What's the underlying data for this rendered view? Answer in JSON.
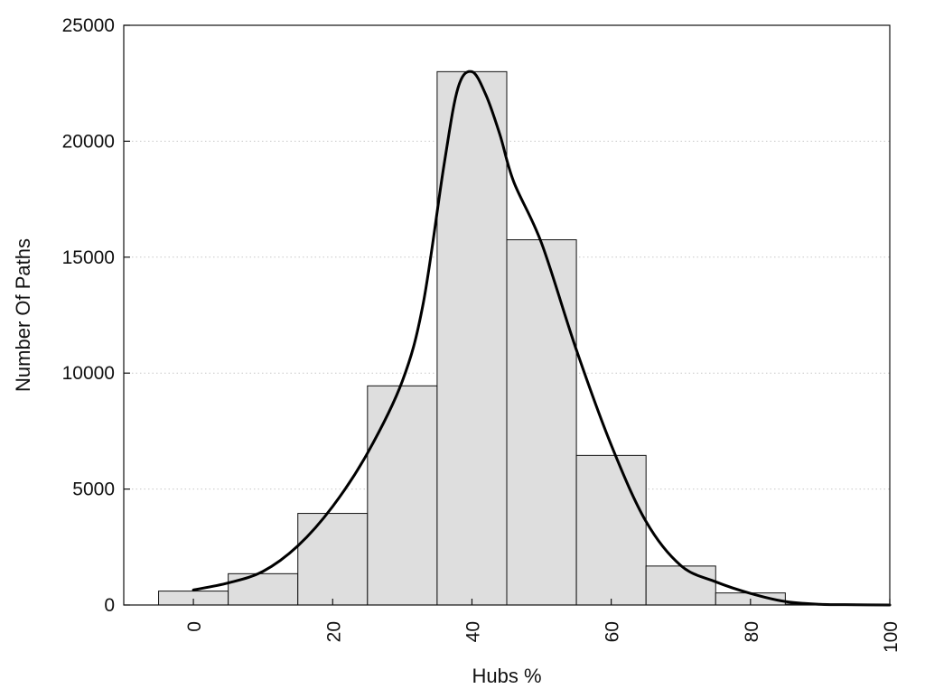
{
  "chart_data": {
    "type": "bar",
    "subtype": "histogram-with-density-curve",
    "title": "",
    "xlabel": "Hubs %",
    "ylabel": "Number Of Paths",
    "xlim": [
      -10,
      100
    ],
    "ylim": [
      0,
      25000
    ],
    "x_ticks": [
      0,
      20,
      40,
      60,
      80,
      100
    ],
    "y_ticks": [
      0,
      5000,
      10000,
      15000,
      20000,
      25000
    ],
    "grid": "horizontal-dotted",
    "legend": "none",
    "bin_width": 10,
    "bins": [
      {
        "center": 0,
        "value": 600
      },
      {
        "center": 10,
        "value": 1350
      },
      {
        "center": 20,
        "value": 3950
      },
      {
        "center": 30,
        "value": 9450
      },
      {
        "center": 40,
        "value": 23000
      },
      {
        "center": 50,
        "value": 15750
      },
      {
        "center": 60,
        "value": 6450
      },
      {
        "center": 70,
        "value": 1680
      },
      {
        "center": 80,
        "value": 520
      },
      {
        "center": 90,
        "value": 40
      }
    ],
    "curve": {
      "x": [
        0,
        5,
        10,
        15,
        20,
        25,
        30,
        33,
        36,
        38,
        40,
        42,
        44,
        46,
        50,
        55,
        60,
        65,
        70,
        75,
        80,
        85,
        90,
        95,
        100
      ],
      "y": [
        650,
        950,
        1450,
        2550,
        4250,
        6550,
        9650,
        13000,
        19000,
        22300,
        23000,
        22000,
        20300,
        18250,
        15600,
        11000,
        6900,
        3600,
        1700,
        1000,
        500,
        150,
        30,
        10,
        0
      ]
    },
    "colors": {
      "bar_fill": "#dedede",
      "bar_stroke": "#111111",
      "curve": "#000000",
      "grid": "#c8c8c8"
    }
  }
}
